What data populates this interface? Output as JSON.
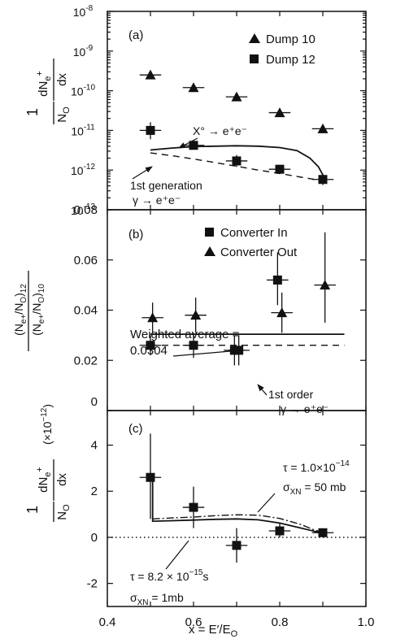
{
  "chart_data": [
    {
      "type": "scatter",
      "panel_label": "(a)",
      "yscale": "log",
      "xlim": [
        0.4,
        1.0
      ],
      "ylim": [
        1e-13,
        1e-08
      ],
      "y_tick_labels": [
        {
          "v": 1e-08,
          "base": "10",
          "exp": "-8"
        },
        {
          "v": 1e-09,
          "base": "10",
          "exp": "-9"
        },
        {
          "v": 1e-10,
          "base": "10",
          "exp": "-10"
        },
        {
          "v": 1e-11,
          "base": "10",
          "exp": "-11"
        },
        {
          "v": 1e-12,
          "base": "10",
          "exp": "-12"
        },
        {
          "v": 1e-13,
          "base": "10",
          "exp": "-13"
        }
      ],
      "ylabel": {
        "one": "1",
        "den": "N",
        "den_sub": "O",
        "num": "dN",
        "num_sub": "e",
        "num_sup": "+",
        "dx": "dx"
      },
      "legend": [
        "Dump 10",
        "Dump 12"
      ],
      "series": [
        {
          "name": "Dump 10",
          "marker": "triangle",
          "points": [
            {
              "x": 0.5,
              "y": 2.5e-10
            },
            {
              "x": 0.6,
              "y": 1.2e-10
            },
            {
              "x": 0.7,
              "y": 7e-11
            },
            {
              "x": 0.8,
              "y": 2.8e-11
            },
            {
              "x": 0.9,
              "y": 1.1e-11
            }
          ]
        },
        {
          "name": "Dump 12",
          "marker": "square",
          "points": [
            {
              "x": 0.5,
              "y": 1e-11,
              "ylo": 6e-12,
              "yhi": 1.6e-11
            },
            {
              "x": 0.6,
              "y": 4.2e-12,
              "ylo": 3.3e-12,
              "yhi": 5.5e-12
            },
            {
              "x": 0.7,
              "y": 1.7e-12,
              "ylo": 1.2e-12,
              "yhi": 2.4e-12
            },
            {
              "x": 0.8,
              "y": 1.05e-12,
              "ylo": 8e-13,
              "yhi": 1.35e-12
            },
            {
              "x": 0.9,
              "y": 5.8e-13,
              "ylo": 4.2e-13,
              "yhi": 8e-13
            }
          ]
        }
      ],
      "curves": [
        {
          "style": "solid",
          "points": [
            [
              0.5,
              3.2e-12
            ],
            [
              0.55,
              3.6e-12
            ],
            [
              0.6,
              3.9e-12
            ],
            [
              0.65,
              4e-12
            ],
            [
              0.7,
              4.1e-12
            ],
            [
              0.75,
              4e-12
            ],
            [
              0.8,
              3.7e-12
            ],
            [
              0.84,
              3.1e-12
            ],
            [
              0.87,
              2e-12
            ],
            [
              0.89,
              1.2e-12
            ],
            [
              0.905,
              6e-13
            ]
          ]
        },
        {
          "style": "dashed",
          "points": [
            [
              0.5,
              2.7e-12
            ],
            [
              0.55,
              2.3e-12
            ],
            [
              0.6,
              1.9e-12
            ],
            [
              0.65,
              1.55e-12
            ],
            [
              0.7,
              1.25e-12
            ],
            [
              0.75,
              1e-12
            ],
            [
              0.8,
              8.2e-13
            ],
            [
              0.85,
              6.6e-13
            ],
            [
              0.9,
              5.4e-13
            ]
          ]
        }
      ],
      "annotations": {
        "x0_label": "X° → e⁺e⁻",
        "gen_line1": "1st generation",
        "gen_line2": "γ → e⁺e⁻"
      }
    },
    {
      "type": "scatter",
      "panel_label": "(b)",
      "xlim": [
        0.4,
        1.0
      ],
      "ylim": [
        0,
        0.08
      ],
      "y_tick_labels": [
        "0",
        "0.02",
        "0.04",
        "0.06",
        "0.08"
      ],
      "ylabel": {
        "num": "(N",
        "num_sub": "e+",
        "num_mid": "/N",
        "num_sub2": "O",
        "num_end": ")",
        "num_sub3": "12",
        "den": "(N",
        "den_sub": "e+",
        "den_mid": "/N",
        "den_sub2": "O",
        "den_end": ")",
        "den_sub3": "10"
      },
      "legend": [
        "Converter In",
        "Converter Out"
      ],
      "series": [
        {
          "name": "Converter In",
          "marker": "square",
          "points": [
            {
              "x": 0.5,
              "y": 0.026,
              "ylo": 0.022,
              "yhi": 0.03
            },
            {
              "x": 0.6,
              "y": 0.026,
              "ylo": 0.021,
              "yhi": 0.031
            },
            {
              "x": 0.695,
              "y": 0.024,
              "ylo": 0.018,
              "yhi": 0.03
            },
            {
              "x": 0.705,
              "y": 0.024,
              "ylo": 0.018,
              "yhi": 0.03
            },
            {
              "x": 0.795,
              "y": 0.052,
              "ylo": 0.042,
              "yhi": 0.063
            }
          ]
        },
        {
          "name": "Converter Out",
          "marker": "triangle",
          "points": [
            {
              "x": 0.505,
              "y": 0.037,
              "ylo": 0.031,
              "yhi": 0.043
            },
            {
              "x": 0.605,
              "y": 0.038,
              "ylo": 0.031,
              "yhi": 0.045
            },
            {
              "x": 0.805,
              "y": 0.039,
              "ylo": 0.031,
              "yhi": 0.047
            },
            {
              "x": 0.905,
              "y": 0.05,
              "ylo": 0.035,
              "yhi": 0.071
            }
          ]
        }
      ],
      "lines": [
        {
          "style": "solid",
          "y": 0.0304,
          "x0": 0.5,
          "x1": 0.95
        },
        {
          "style": "dashed",
          "y": 0.026,
          "x0": 0.5,
          "x1": 0.95
        }
      ],
      "annotations": {
        "wa_line1": "Weighted average =",
        "wa_line2": "0.0304",
        "order_line1": "1st order",
        "order_line2": "γ → e⁺e⁻"
      }
    },
    {
      "type": "scatter",
      "panel_label": "(c)",
      "xlim": [
        0.4,
        1.0
      ],
      "ylim": [
        -3,
        5.5
      ],
      "y_tick_labels": [
        "4",
        "2",
        "0",
        "-2"
      ],
      "x_tick_labels": [
        "0.4",
        "0.6",
        "0.8",
        "1.0"
      ],
      "xlabel": {
        "text": "x = E′/E",
        "sub": "O"
      },
      "ylabel": {
        "one": "1",
        "den": "N",
        "den_sub": "O",
        "num": "dN",
        "num_sub": "e",
        "num_sup": "+",
        "dx": "dx",
        "scale": "(×10",
        "scale_exp": "−12",
        "scale_end": ")"
      },
      "series": [
        {
          "name": "",
          "marker": "square",
          "points": [
            {
              "x": 0.5,
              "y": 2.6,
              "ylo": 0.8,
              "yhi": 4.5
            },
            {
              "x": 0.6,
              "y": 1.3,
              "ylo": 0.4,
              "yhi": 2.2
            },
            {
              "x": 0.7,
              "y": -0.35,
              "ylo": -1.1,
              "yhi": 0.4
            },
            {
              "x": 0.8,
              "y": 0.28,
              "ylo": 0.0,
              "yhi": 0.6
            },
            {
              "x": 0.9,
              "y": 0.2,
              "ylo": 0.05,
              "yhi": 0.35
            }
          ]
        }
      ],
      "curves": [
        {
          "style": "solid",
          "points": [
            [
              0.5,
              2.6
            ],
            [
              0.505,
              2.6
            ],
            [
              0.505,
              0.7
            ],
            [
              0.55,
              0.72
            ],
            [
              0.6,
              0.75
            ],
            [
              0.65,
              0.78
            ],
            [
              0.7,
              0.8
            ],
            [
              0.75,
              0.76
            ],
            [
              0.8,
              0.62
            ],
            [
              0.85,
              0.4
            ],
            [
              0.89,
              0.22
            ],
            [
              0.905,
              0.2
            ]
          ]
        },
        {
          "style": "dashdot",
          "points": [
            [
              0.505,
              0.8
            ],
            [
              0.55,
              0.84
            ],
            [
              0.6,
              0.88
            ],
            [
              0.65,
              0.94
            ],
            [
              0.7,
              0.98
            ],
            [
              0.75,
              0.96
            ],
            [
              0.8,
              0.82
            ],
            [
              0.85,
              0.55
            ],
            [
              0.88,
              0.32
            ],
            [
              0.905,
              0.2
            ]
          ]
        }
      ],
      "reference_line": {
        "style": "dotted",
        "y": 0
      },
      "annotations": {
        "tau1": "τ = 1.0×10",
        "tau1_exp": "−14",
        "sigma1": "σ",
        "sigma1_sub": "XN",
        "sigma1_val": " = 50 mb",
        "tau2": "τ = 8.2 × 10",
        "tau2_exp": "−15",
        "tau2_unit": "s",
        "sigma2": "σ",
        "sigma2_sub": "XN",
        "sigma2_val": " = 1mb"
      }
    }
  ]
}
